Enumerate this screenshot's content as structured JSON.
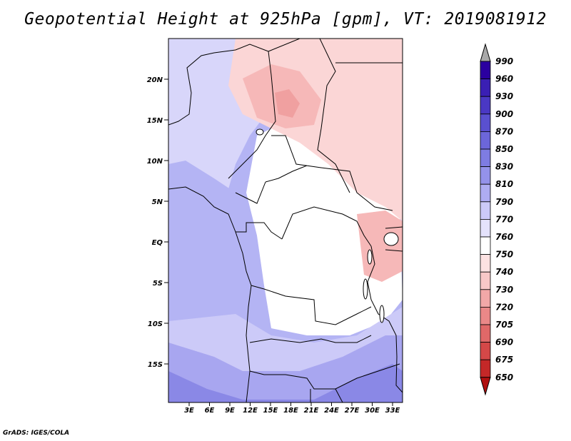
{
  "title": "Geopotential Height at 925hPa [gpm], VT: 2019081912",
  "footer": "GrADS: IGES/COLA",
  "map": {
    "lat_ticks": [
      "20N",
      "15N",
      "10N",
      "5N",
      "EQ",
      "5S",
      "10S",
      "15S"
    ],
    "lon_ticks": [
      "3E",
      "6E",
      "9E",
      "12E",
      "15E",
      "18E",
      "21E",
      "24E",
      "27E",
      "30E",
      "33E"
    ]
  },
  "colorbar": {
    "labels": [
      "990",
      "960",
      "930",
      "900",
      "870",
      "850",
      "830",
      "810",
      "790",
      "770",
      "760",
      "750",
      "740",
      "730",
      "720",
      "705",
      "690",
      "675",
      "650"
    ],
    "colors": [
      "#2b00a0",
      "#3a1fb4",
      "#4a38c4",
      "#5a50d0",
      "#6c66da",
      "#7e7ce2",
      "#9492ea",
      "#aeacf2",
      "#cccaf8",
      "#e4e2fc",
      "#ffffff",
      "#fde2e2",
      "#f8c8c8",
      "#f2a8a8",
      "#ea8888",
      "#e06868",
      "#d44848",
      "#c42828",
      "#b01010"
    ]
  },
  "colors": {
    "top_arrow": "#a8a8a8",
    "bottom_arrow": "#b01010",
    "field_west": "#b4b4f4",
    "field_south": "#8a88e6",
    "field_center": "#ffffff",
    "field_north": "#fbd6d6",
    "field_sahel_low": "#f0a0a0"
  }
}
